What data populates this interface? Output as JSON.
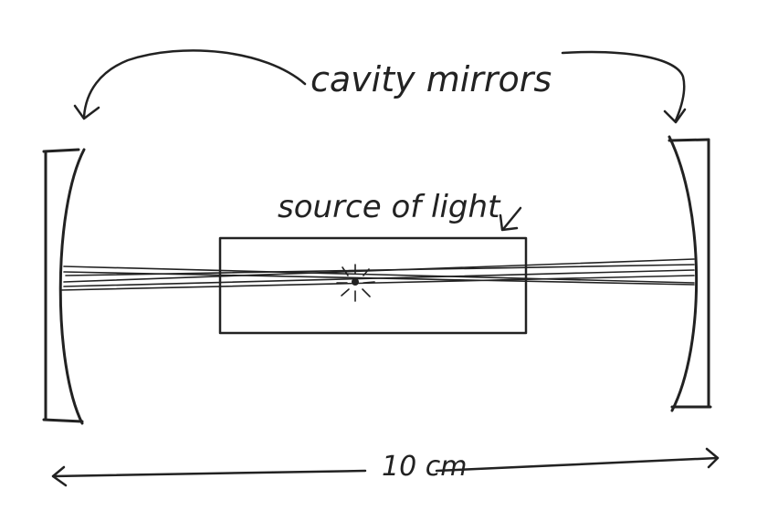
{
  "labels": {
    "mirrors_label": "cavity mirrors",
    "source_label": "source of light",
    "distance_label": "10 cm"
  },
  "colors": {
    "ink": "#222222",
    "paper": "#ffffff"
  }
}
